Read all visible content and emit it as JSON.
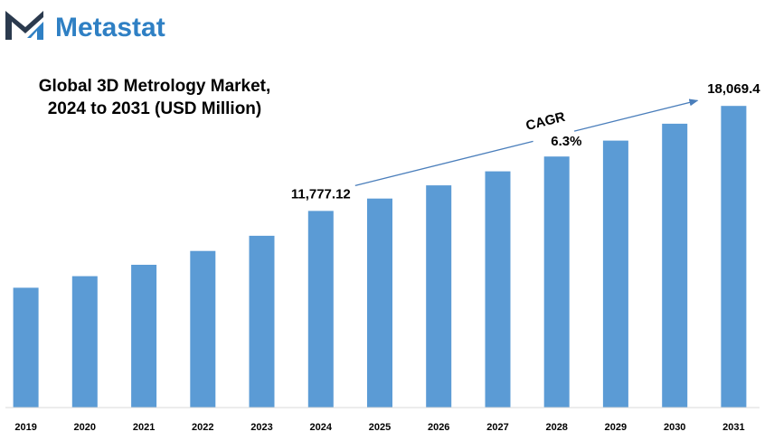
{
  "brand": {
    "name": "Metastat",
    "logo_icon": "metastat-m-logo-icon",
    "text_color": "#2f80c4",
    "logo_dark": "#2b3a4e",
    "logo_blue": "#2f80c4"
  },
  "chart_data": {
    "type": "bar",
    "title_line1": "Global 3D Metrology Market,",
    "title_line2": "2024 to 2031 (USD Million)",
    "xlabel": "",
    "ylabel": "",
    "grid": false,
    "bar_color": "#5b9bd5",
    "ylim": [
      0,
      19000
    ],
    "categories": [
      "2019",
      "2020",
      "2021",
      "2022",
      "2023",
      "2024",
      "2025",
      "2026",
      "2027",
      "2028",
      "2029",
      "2030",
      "2031"
    ],
    "values": [
      7180,
      7870,
      8550,
      9380,
      10290,
      11777.12,
      12520,
      13310,
      14150,
      15040,
      15990,
      17000,
      18069.4
    ],
    "data_labels": [
      {
        "category": "2024",
        "text": "11,777.12"
      },
      {
        "category": "2031",
        "text": "18,069.4"
      }
    ],
    "annotation": {
      "label": "CAGR",
      "value": "6.3%",
      "arrow_from": "2024",
      "arrow_to": "2031",
      "arrow_color": "#4a7ebb"
    }
  }
}
